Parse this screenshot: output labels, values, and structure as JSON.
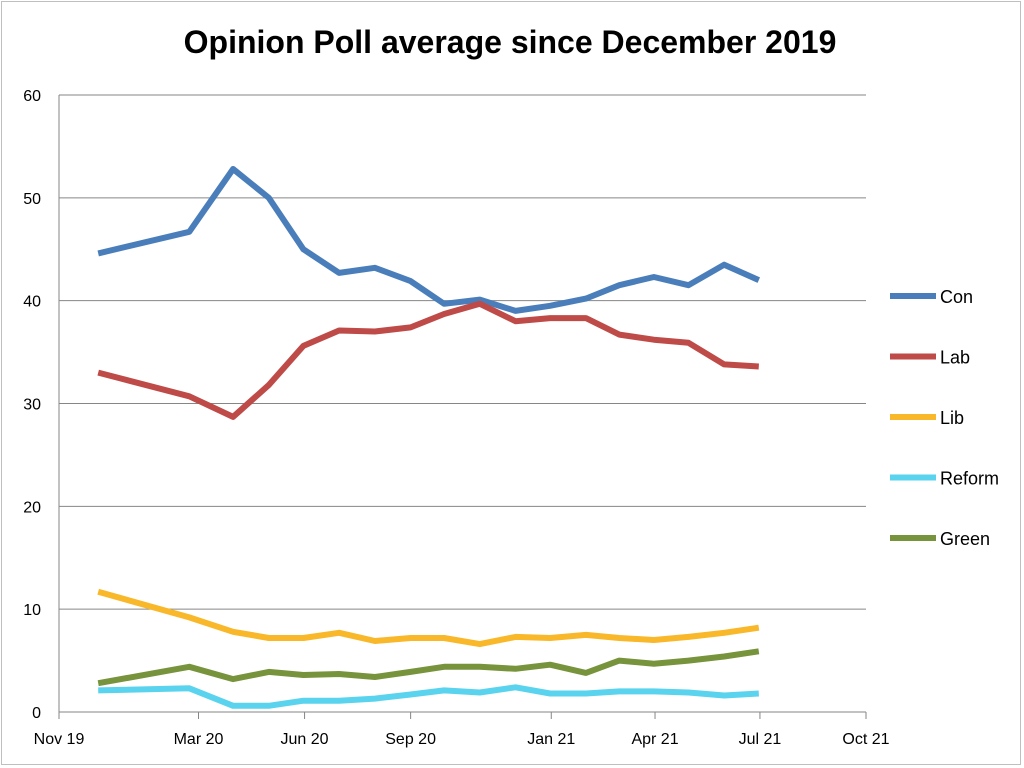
{
  "chart_data": {
    "type": "line",
    "title": "Opinion Poll average since December 2019",
    "xlabel": "",
    "ylabel": "",
    "ylim": [
      0,
      60
    ],
    "yticks": [
      0,
      10,
      20,
      30,
      40,
      50,
      60
    ],
    "xlim": [
      "2019-11-01",
      "2021-10-01"
    ],
    "xticks": [
      {
        "date": "2019-11-01",
        "label": "Nov 19"
      },
      {
        "date": "2020-03-01",
        "label": "Mar 20"
      },
      {
        "date": "2020-06-01",
        "label": "Jun 20"
      },
      {
        "date": "2020-09-01",
        "label": "Sep 20"
      },
      {
        "date": "2021-01-01",
        "label": "Jan 21"
      },
      {
        "date": "2021-04-01",
        "label": "Apr 21"
      },
      {
        "date": "2021-07-01",
        "label": "Jul 21"
      },
      {
        "date": "2021-10-01",
        "label": "Oct 21"
      }
    ],
    "grid": "horizontal",
    "legend_position": "right",
    "x": [
      "2019-12-05",
      "2020-02-22",
      "2020-03-31",
      "2020-05-01",
      "2020-05-31",
      "2020-07-01",
      "2020-08-01",
      "2020-09-01",
      "2020-09-30",
      "2020-10-31",
      "2020-12-01",
      "2020-12-31",
      "2021-01-31",
      "2021-03-01",
      "2021-03-31",
      "2021-04-30",
      "2021-05-31",
      "2021-06-30"
    ],
    "series": [
      {
        "name": "Con",
        "color": "#4a7ebb",
        "values": [
          44.6,
          46.7,
          52.8,
          50.0,
          45.0,
          42.7,
          43.2,
          41.9,
          39.7,
          40.1,
          39.0,
          39.5,
          40.2,
          41.5,
          42.3,
          41.5,
          43.5,
          42.0
        ]
      },
      {
        "name": "Lab",
        "color": "#be4b48",
        "values": [
          33.0,
          30.7,
          28.7,
          31.8,
          35.6,
          37.1,
          37.0,
          37.4,
          38.7,
          39.7,
          38.0,
          38.3,
          38.3,
          36.7,
          36.2,
          35.9,
          33.8,
          33.6
        ]
      },
      {
        "name": "Lib",
        "color": "#f9b72a",
        "values": [
          11.7,
          9.2,
          7.8,
          7.2,
          7.2,
          7.7,
          6.9,
          7.2,
          7.2,
          6.6,
          7.3,
          7.2,
          7.5,
          7.2,
          7.0,
          7.3,
          7.7,
          8.2
        ]
      },
      {
        "name": "Reform",
        "color": "#5ad3ee",
        "values": [
          2.1,
          2.3,
          0.6,
          0.6,
          1.1,
          1.1,
          1.3,
          1.7,
          2.1,
          1.9,
          2.4,
          1.8,
          1.8,
          2.0,
          2.0,
          1.9,
          1.6,
          1.8
        ]
      },
      {
        "name": "Green",
        "color": "#77933c",
        "values": [
          2.8,
          4.4,
          3.2,
          3.9,
          3.6,
          3.7,
          3.4,
          3.9,
          4.4,
          4.4,
          4.2,
          4.6,
          3.8,
          5.0,
          4.7,
          5.0,
          5.4,
          5.9
        ]
      }
    ]
  }
}
